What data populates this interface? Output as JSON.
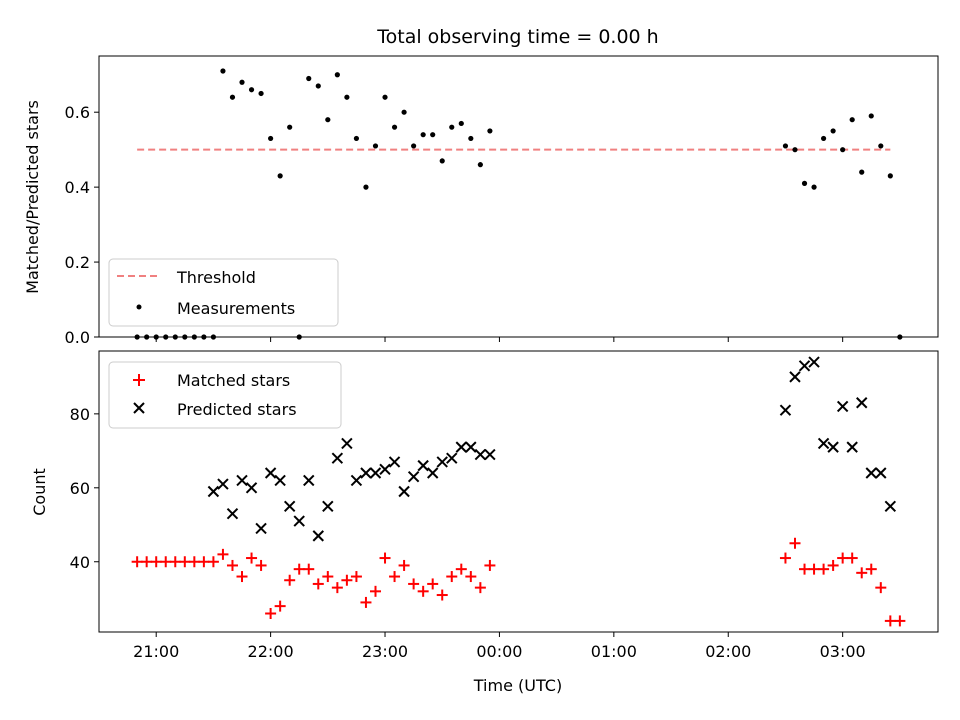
{
  "chart_data": [
    {
      "type": "scatter",
      "title": "Total observing time = 0.00 h",
      "xlabel": "",
      "ylabel": "Matched/Predicted stars",
      "ylim": [
        0,
        0.75
      ],
      "yticks": [
        "0.0",
        "0.2",
        "0.4",
        "0.6"
      ],
      "legend_position": "lower-left",
      "threshold": {
        "name": "Threshold",
        "y": 0.5,
        "x_start": "20:50",
        "x_end": "03:25",
        "color": "#f08080"
      },
      "series": [
        {
          "name": "Measurements",
          "color": "#000000",
          "x": [
            "20:50",
            "20:55",
            "21:00",
            "21:05",
            "21:10",
            "21:15",
            "21:20",
            "21:25",
            "21:30",
            "21:35",
            "21:40",
            "21:45",
            "21:50",
            "21:55",
            "22:00",
            "22:05",
            "22:10",
            "22:15",
            "22:20",
            "22:25",
            "22:30",
            "22:35",
            "22:40",
            "22:45",
            "22:50",
            "22:55",
            "23:00",
            "23:05",
            "23:10",
            "23:15",
            "23:20",
            "23:25",
            "23:30",
            "23:35",
            "23:40",
            "23:45",
            "23:50",
            "23:55",
            "02:30",
            "02:35",
            "02:40",
            "02:45",
            "02:50",
            "02:55",
            "03:00",
            "03:05",
            "03:10",
            "03:15",
            "03:20",
            "03:25",
            "03:30"
          ],
          "y": [
            0,
            0,
            0,
            0,
            0,
            0,
            0,
            0,
            0,
            0.71,
            0.64,
            0.68,
            0.66,
            0.65,
            0.53,
            0.43,
            0.56,
            0,
            0.69,
            0.67,
            0.58,
            0.7,
            0.64,
            0.53,
            0.4,
            0.51,
            0.64,
            0.56,
            0.6,
            0.51,
            0.54,
            0.54,
            0.47,
            0.56,
            0.57,
            0.53,
            0.46,
            0.55,
            0.51,
            0.5,
            0.41,
            0.4,
            0.53,
            0.55,
            0.5,
            0.58,
            0.44,
            0.59,
            0.51,
            0.43,
            0
          ]
        }
      ]
    },
    {
      "type": "scatter",
      "xlabel": "Time (UTC)",
      "ylabel": "Count",
      "ylim": [
        21,
        97
      ],
      "yticks": [
        "40",
        "60",
        "80"
      ],
      "xticks": [
        "21:00",
        "22:00",
        "23:00",
        "00:00",
        "01:00",
        "02:00",
        "03:00"
      ],
      "legend_position": "upper-left",
      "series": [
        {
          "name": "Matched stars",
          "color": "#ff0000",
          "x": [
            "20:50",
            "20:55",
            "21:00",
            "21:05",
            "21:10",
            "21:15",
            "21:20",
            "21:25",
            "21:30",
            "21:35",
            "21:40",
            "21:45",
            "21:50",
            "21:55",
            "22:00",
            "22:05",
            "22:10",
            "22:15",
            "22:20",
            "22:25",
            "22:30",
            "22:35",
            "22:40",
            "22:45",
            "22:50",
            "22:55",
            "23:00",
            "23:05",
            "23:10",
            "23:15",
            "23:20",
            "23:25",
            "23:30",
            "23:35",
            "23:40",
            "23:45",
            "23:50",
            "23:55",
            "02:30",
            "02:35",
            "02:40",
            "02:45",
            "02:50",
            "02:55",
            "03:00",
            "03:05",
            "03:10",
            "03:15",
            "03:20",
            "03:25",
            "03:30"
          ],
          "y": [
            40,
            40,
            40,
            40,
            40,
            40,
            40,
            40,
            40,
            42,
            39,
            36,
            41,
            39,
            26,
            28,
            35,
            38,
            38,
            34,
            36,
            33,
            35,
            36,
            29,
            32,
            41,
            36,
            39,
            34,
            32,
            34,
            31,
            36,
            38,
            36,
            33,
            39,
            41,
            45,
            38,
            38,
            38,
            39,
            41,
            41,
            37,
            38,
            33,
            24,
            24
          ]
        },
        {
          "name": "Predicted stars",
          "color": "#000000",
          "x": [
            "21:30",
            "21:35",
            "21:40",
            "21:45",
            "21:50",
            "21:55",
            "22:00",
            "22:05",
            "22:10",
            "22:15",
            "22:20",
            "22:25",
            "22:30",
            "22:35",
            "22:40",
            "22:45",
            "22:50",
            "22:55",
            "23:00",
            "23:05",
            "23:10",
            "23:15",
            "23:20",
            "23:25",
            "23:30",
            "23:35",
            "23:40",
            "23:45",
            "23:50",
            "23:55",
            "02:30",
            "02:35",
            "02:40",
            "02:45",
            "02:50",
            "02:55",
            "03:00",
            "03:05",
            "03:10",
            "03:15",
            "03:20",
            "03:25"
          ],
          "y": [
            59,
            61,
            53,
            62,
            60,
            49,
            64,
            62,
            55,
            51,
            62,
            47,
            55,
            68,
            72,
            62,
            64,
            64,
            65,
            67,
            59,
            63,
            66,
            64,
            67,
            68,
            71,
            71,
            69,
            69,
            81,
            90,
            93,
            94,
            72,
            71,
            82,
            71,
            83,
            64,
            64,
            55
          ]
        }
      ]
    }
  ]
}
